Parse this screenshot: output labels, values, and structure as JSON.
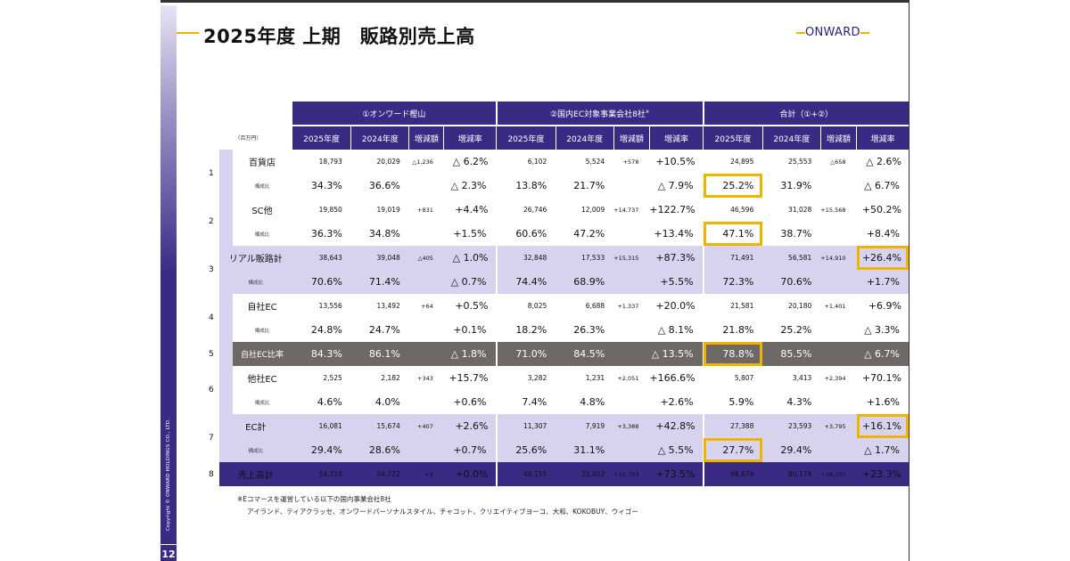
{
  "slide": {
    "title": "2025年度 上期　販路別売上高",
    "logo": "ONWARD",
    "copyright": "Copyright © ONWARD HOLDINGS CO., LTD.",
    "page_number": "12",
    "unit": "（百万円）"
  },
  "colors": {
    "navy": "#3a2a84",
    "lavender": "#d5d3ee",
    "gray": "#6e6867",
    "highlight": "#f0b400"
  },
  "table": {
    "groups": [
      "①オンワード樫山",
      "②国内EC対象事業会社8社",
      "合計（①+②）"
    ],
    "group_note": "※",
    "columns": [
      "2025年度",
      "2024年度",
      "増減額",
      "増減率"
    ],
    "rows": [
      {
        "no": "1",
        "label": "百貨店",
        "style": "white",
        "values": [
          "18,793",
          "20,029",
          "△1,236",
          "△ 6.2%",
          "6,102",
          "5,524",
          "+578",
          "+10.5%",
          "24,895",
          "25,553",
          "△658",
          "△ 2.6%"
        ],
        "share_label": "構成比",
        "share": [
          "34.3%",
          "36.6%",
          "",
          "△ 2.3%",
          "13.8%",
          "21.7%",
          "",
          "△ 7.9%",
          "25.2%",
          "31.9%",
          "",
          "△ 6.7%"
        ]
      },
      {
        "no": "2",
        "label": "SC他",
        "style": "white",
        "values": [
          "19,850",
          "19,019",
          "+831",
          "+4.4%",
          "26,746",
          "12,009",
          "+14,737",
          "+122.7%",
          "46,596",
          "31,028",
          "+15,568",
          "+50.2%"
        ],
        "share_label": "構成比",
        "share": [
          "36.3%",
          "34.8%",
          "",
          "+1.5%",
          "60.6%",
          "47.2%",
          "",
          "+13.4%",
          "47.1%",
          "38.7%",
          "",
          "+8.4%"
        ]
      },
      {
        "no": "3",
        "label": "リアル販路計",
        "style": "lav",
        "values": [
          "38,643",
          "39,048",
          "△405",
          "△ 1.0%",
          "32,848",
          "17,533",
          "+15,315",
          "+87.3%",
          "71,491",
          "56,581",
          "+14,910",
          "+26.4%"
        ],
        "share_label": "構成比",
        "share": [
          "70.6%",
          "71.4%",
          "",
          "△ 0.7%",
          "74.4%",
          "68.9%",
          "",
          "+5.5%",
          "72.3%",
          "70.6%",
          "",
          "+1.7%"
        ]
      },
      {
        "no": "4",
        "label": "自社EC",
        "style": "white",
        "values": [
          "13,556",
          "13,492",
          "+64",
          "+0.5%",
          "8,025",
          "6,688",
          "+1,337",
          "+20.0%",
          "21,581",
          "20,180",
          "+1,401",
          "+6.9%"
        ],
        "share_label": "構成比",
        "share": [
          "24.8%",
          "24.7%",
          "",
          "+0.1%",
          "18.2%",
          "26.3%",
          "",
          "△ 8.1%",
          "21.8%",
          "25.2%",
          "",
          "△ 3.3%"
        ]
      },
      {
        "no": "5",
        "label": "自社EC比率",
        "style": "gray",
        "values": [
          "84.3%",
          "86.1%",
          "",
          "△ 1.8%",
          "71.0%",
          "84.5%",
          "",
          "△ 13.5%",
          "78.8%",
          "85.5%",
          "",
          "△ 6.7%"
        ]
      },
      {
        "no": "6",
        "label": "他社EC",
        "style": "white",
        "values": [
          "2,525",
          "2,182",
          "+343",
          "+15.7%",
          "3,282",
          "1,231",
          "+2,051",
          "+166.6%",
          "5,807",
          "3,413",
          "+2,394",
          "+70.1%"
        ],
        "share_label": "構成比",
        "share": [
          "4.6%",
          "4.0%",
          "",
          "+0.6%",
          "7.4%",
          "4.8%",
          "",
          "+2.6%",
          "5.9%",
          "4.3%",
          "",
          "+1.6%"
        ]
      },
      {
        "no": "7",
        "label": "EC計",
        "style": "lav",
        "values": [
          "16,081",
          "15,674",
          "+407",
          "+2.6%",
          "11,307",
          "7,919",
          "+3,388",
          "+42.8%",
          "27,388",
          "23,593",
          "+3,795",
          "+16.1%"
        ],
        "share_label": "構成比",
        "share": [
          "29.4%",
          "28.6%",
          "",
          "+0.7%",
          "25.6%",
          "31.1%",
          "",
          "△ 5.5%",
          "27.7%",
          "29.4%",
          "",
          "△ 1.7%"
        ]
      },
      {
        "no": "8",
        "label": "売上高計",
        "style": "navy",
        "values": [
          "54,724",
          "54,722",
          "+2",
          "+0.0%",
          "44,155",
          "25,452",
          "+18,703",
          "+73.5%",
          "98,879",
          "80,174",
          "+18,705",
          "+23.3%"
        ]
      }
    ],
    "highlighted": [
      "25.2%",
      "47.1%",
      "+26.4%",
      "78.8%",
      "+16.1%",
      "27.7%"
    ]
  },
  "footnote": {
    "line1": "※Eコマースを運営している以下の国内事業会社8社",
    "line2": "アイランド、ティアクラッセ、オンワードパーソナルスタイル、チャコット、クリエイティブヨーコ、大和、KOKOBUY、ウィゴー"
  }
}
